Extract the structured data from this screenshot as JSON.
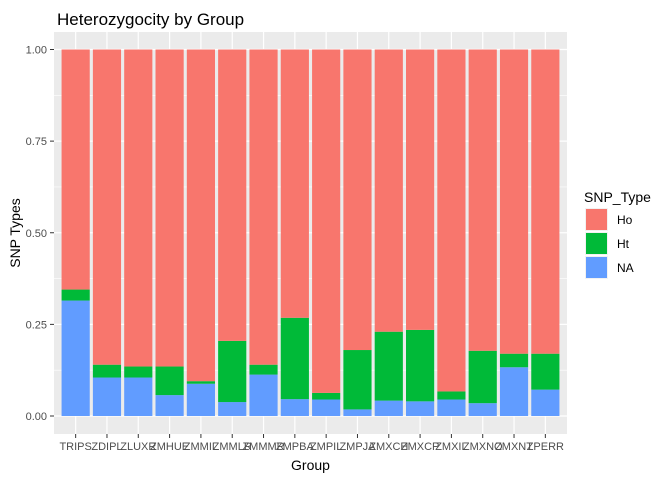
{
  "chart_data": {
    "type": "bar",
    "stacked": true,
    "title": "Heterozygocity by Group",
    "xlabel": "Group",
    "ylabel": "SNP Types",
    "ylim": [
      0,
      1
    ],
    "yticks": [
      "0.00",
      "0.25",
      "0.50",
      "0.75",
      "1.00"
    ],
    "ytick_values": [
      0,
      0.25,
      0.5,
      0.75,
      1
    ],
    "grid": true,
    "legend": {
      "title": "SNP_Type",
      "placement": "right"
    },
    "categories": [
      "TRIPS",
      "ZDIPL",
      "ZLUXR",
      "ZMHUE",
      "ZMMIL",
      "ZMMLR",
      "ZMMMR",
      "ZMPBA",
      "ZMPIL",
      "ZMPJA",
      "ZMXCH",
      "ZMXCP",
      "ZMXIL",
      "ZMXNO",
      "ZMXNT",
      "ZPERR"
    ],
    "stack_order": [
      "NA",
      "Ht",
      "Ho"
    ],
    "series": [
      {
        "name": "Ho",
        "color": "#F8766D",
        "values": [
          0.655,
          0.86,
          0.865,
          0.865,
          0.905,
          0.795,
          0.86,
          0.732,
          0.937,
          0.82,
          0.77,
          0.765,
          0.933,
          0.822,
          0.83,
          0.83
        ]
      },
      {
        "name": "Ht",
        "color": "#00BA38",
        "values": [
          0.03,
          0.035,
          0.03,
          0.078,
          0.007,
          0.167,
          0.027,
          0.222,
          0.018,
          0.162,
          0.188,
          0.195,
          0.022,
          0.143,
          0.037,
          0.098
        ]
      },
      {
        "name": "NA",
        "color": "#619CFF",
        "values": [
          0.315,
          0.105,
          0.105,
          0.057,
          0.088,
          0.038,
          0.113,
          0.046,
          0.045,
          0.018,
          0.042,
          0.04,
          0.045,
          0.035,
          0.133,
          0.072
        ]
      }
    ]
  }
}
